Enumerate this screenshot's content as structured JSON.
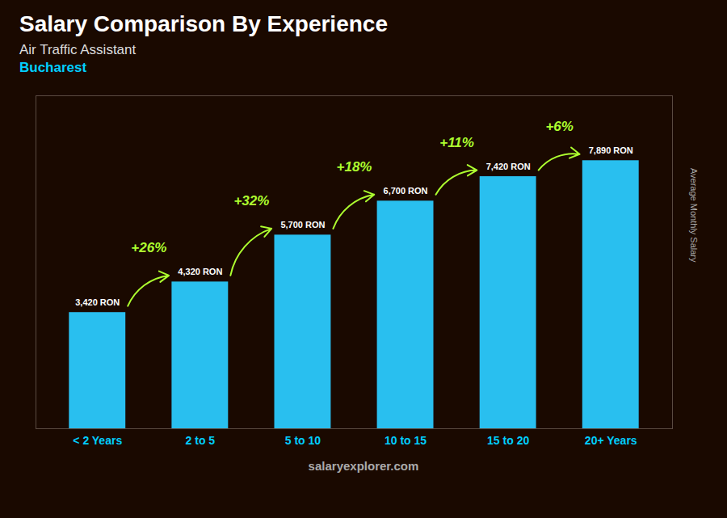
{
  "chart_data": {
    "type": "bar",
    "title": "Salary Comparison By Experience",
    "subtitle": [
      "Air Traffic Assistant",
      "Bucharest"
    ],
    "categories": [
      "< 2 Years",
      "2 to 5",
      "5 to 10",
      "10 to 15",
      "15 to 20",
      "20+ Years"
    ],
    "values": [
      3420,
      4320,
      5700,
      6700,
      7420,
      7890
    ],
    "value_labels": [
      "3,420 RON",
      "4,320 RON",
      "5,700 RON",
      "6,700 RON",
      "7,420 RON",
      "7,890 RON"
    ],
    "data_labels": true,
    "annotations": [
      "+26%",
      "+32%",
      "+18%",
      "+11%",
      "+6%"
    ],
    "ylabel": "Average Monthly Salary",
    "ylim": [
      0,
      9800
    ],
    "tick_labels": "x",
    "color": "#29BFEF",
    "caption": "salaryexplorer.com"
  }
}
